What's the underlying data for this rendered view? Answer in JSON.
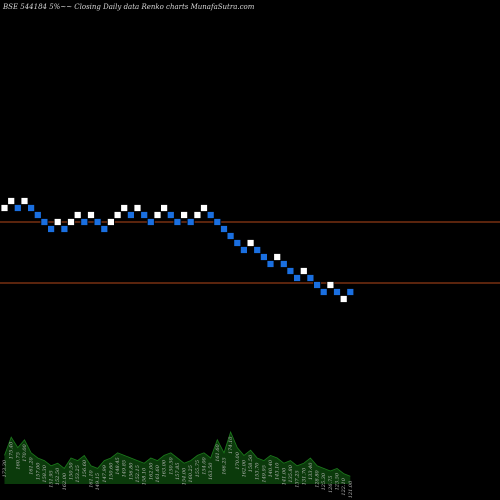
{
  "header": {
    "title": "BSE 544184 5%~~ Closing Daily data Renko charts MunafaSutra.com"
  },
  "colors": {
    "background": "#000000",
    "up_brick": "#ffffff",
    "down_brick": "#1a6fe0",
    "reference_line": "#b4471a",
    "volume_fill": "#0b3a0b",
    "volume_line": "#1c7a1c"
  },
  "chart_data": {
    "type": "renko",
    "title": "BSE 544184 5%~~ Closing Daily data Renko charts MunafaSutra.com",
    "grid": false,
    "legend": "none",
    "brick_rows": [
      3,
      2,
      3,
      2,
      3,
      4,
      5,
      6,
      5,
      6,
      5,
      4,
      5,
      4,
      5,
      6,
      5,
      4,
      3,
      4,
      3,
      4,
      5,
      4,
      3,
      4,
      5,
      4,
      5,
      4,
      3,
      4,
      5,
      6,
      7,
      8,
      9,
      8,
      9,
      10,
      11,
      10,
      11,
      12,
      13,
      12,
      13,
      14,
      15,
      14,
      15,
      16,
      15
    ],
    "brick_colors": [
      "white",
      "white",
      "blue",
      "white",
      "blue",
      "blue",
      "blue",
      "blue",
      "white",
      "blue",
      "white",
      "white",
      "blue",
      "white",
      "blue",
      "blue",
      "white",
      "white",
      "white",
      "blue",
      "white",
      "blue",
      "blue",
      "white",
      "white",
      "blue",
      "blue",
      "white",
      "blue",
      "white",
      "white",
      "blue",
      "blue",
      "blue",
      "blue",
      "blue",
      "blue",
      "white",
      "blue",
      "blue",
      "blue",
      "white",
      "blue",
      "blue",
      "blue",
      "white",
      "blue",
      "blue",
      "blue",
      "white",
      "blue",
      "white",
      "blue"
    ],
    "reference_lines": [
      "upper",
      "lower"
    ],
    "volume_tick_labels": [
      "173.30",
      "175.40",
      "160.75",
      "170.00",
      "161.20",
      "157.00",
      "158.30",
      "151.95",
      "152.50",
      "162.00",
      "150.50",
      "153.25",
      "156.60",
      "161.10",
      "149.15",
      "147.99",
      "150.60",
      "148.45",
      "149.85",
      "156.80",
      "152.15",
      "158.10",
      "162.00",
      "161.60",
      "163.00",
      "150.50",
      "157.85",
      "154.00",
      "160.25",
      "155.75",
      "154.00",
      "163.50",
      "161.60",
      "166.25",
      "174.10",
      "170.00",
      "162.00",
      "158.50",
      "153.70",
      "149.95",
      "140.40",
      "143.10",
      "141.00",
      "135.80",
      "137.25",
      "131.70",
      "133.40",
      "128.80",
      "125.30",
      "126.75",
      "123.50",
      "122.10",
      "121.00"
    ],
    "volume_profile": [
      0.55,
      0.9,
      0.7,
      0.85,
      0.6,
      0.5,
      0.45,
      0.35,
      0.4,
      0.3,
      0.5,
      0.45,
      0.55,
      0.35,
      0.3,
      0.45,
      0.5,
      0.6,
      0.55,
      0.5,
      0.45,
      0.4,
      0.5,
      0.45,
      0.55,
      0.6,
      0.5,
      0.4,
      0.45,
      0.55,
      0.6,
      0.5,
      0.85,
      0.6,
      1.0,
      0.7,
      0.55,
      0.65,
      0.5,
      0.45,
      0.55,
      0.5,
      0.4,
      0.45,
      0.35,
      0.4,
      0.5,
      0.35,
      0.3,
      0.25,
      0.3,
      0.2,
      0.15
    ]
  }
}
